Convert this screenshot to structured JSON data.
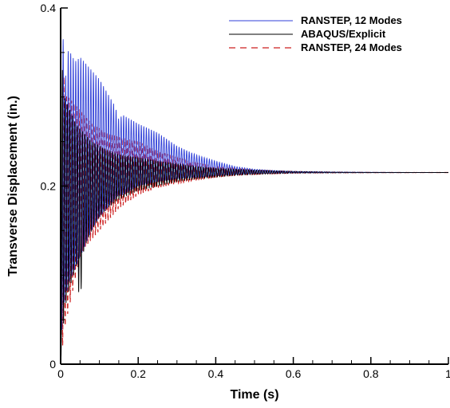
{
  "chart_data": {
    "type": "line",
    "title": "",
    "xlabel": "Time (s)",
    "ylabel": "Transverse Displacement (in.)",
    "xlim": [
      0,
      1
    ],
    "ylim": [
      0,
      0.4
    ],
    "x_ticks": [
      "0",
      "0.2",
      "0.4",
      "0.6",
      "0.8",
      "1"
    ],
    "y_ticks": [
      "0",
      "0.2",
      "0.4"
    ],
    "grid": false,
    "legend_position": "top-right",
    "series": [
      {
        "name": "RANSTEP, 12 Modes",
        "color": "#2f3fd8",
        "dash": "solid",
        "x": [
          0,
          0.005,
          0.01,
          0.015,
          0.02,
          0.03,
          0.04,
          0.05,
          0.06,
          0.08,
          0.1,
          0.12,
          0.14,
          0.15,
          0.16,
          0.18,
          0.2,
          0.25,
          0.3,
          0.35,
          0.4,
          0.45,
          0.5,
          0.55,
          0.6,
          0.7,
          0.8,
          0.9,
          1.0
        ],
        "upper": [
          0.0,
          0.38,
          0.33,
          0.32,
          0.355,
          0.345,
          0.34,
          0.345,
          0.34,
          0.33,
          0.32,
          0.305,
          0.29,
          0.275,
          0.28,
          0.275,
          0.27,
          0.26,
          0.245,
          0.235,
          0.228,
          0.222,
          0.219,
          0.2175,
          0.2165,
          0.2158,
          0.2155,
          0.2153,
          0.2152
        ],
        "lower": [
          0.0,
          0.06,
          0.07,
          0.08,
          0.09,
          0.1,
          0.11,
          0.12,
          0.13,
          0.15,
          0.165,
          0.175,
          0.185,
          0.19,
          0.19,
          0.195,
          0.2,
          0.205,
          0.208,
          0.21,
          0.212,
          0.213,
          0.214,
          0.2145,
          0.2148,
          0.215,
          0.2151,
          0.2151,
          0.2152
        ]
      },
      {
        "name": "ABAQUS/Explicit",
        "color": "#000000",
        "dash": "solid",
        "x": [
          0,
          0.005,
          0.01,
          0.02,
          0.03,
          0.04,
          0.05,
          0.06,
          0.08,
          0.1,
          0.12,
          0.15,
          0.2,
          0.25,
          0.3,
          0.35,
          0.4,
          0.45,
          0.5,
          0.6,
          0.7,
          0.8,
          0.9,
          1.0
        ],
        "upper": [
          0.0,
          0.37,
          0.3,
          0.29,
          0.28,
          0.27,
          0.265,
          0.26,
          0.25,
          0.245,
          0.24,
          0.235,
          0.232,
          0.228,
          0.225,
          0.222,
          0.22,
          0.219,
          0.218,
          0.2165,
          0.2158,
          0.2154,
          0.2153,
          0.2152
        ],
        "lower": [
          0.0,
          0.03,
          0.06,
          0.08,
          0.095,
          0.11,
          0.065,
          0.13,
          0.15,
          0.165,
          0.175,
          0.185,
          0.195,
          0.2,
          0.205,
          0.208,
          0.21,
          0.212,
          0.213,
          0.2145,
          0.2148,
          0.215,
          0.2151,
          0.2152
        ]
      },
      {
        "name": "RANSTEP, 24 Modes",
        "color": "#cc1f1f",
        "dash": "dashed",
        "x": [
          0,
          0.005,
          0.01,
          0.02,
          0.03,
          0.04,
          0.05,
          0.06,
          0.08,
          0.1,
          0.12,
          0.15,
          0.2,
          0.25,
          0.3,
          0.35,
          0.4,
          0.45,
          0.5,
          0.6,
          0.7,
          0.8,
          0.9,
          1.0
        ],
        "upper": [
          0.0,
          0.36,
          0.305,
          0.3,
          0.295,
          0.29,
          0.285,
          0.28,
          0.27,
          0.265,
          0.26,
          0.255,
          0.25,
          0.24,
          0.232,
          0.226,
          0.222,
          0.22,
          0.218,
          0.2165,
          0.2158,
          0.2154,
          0.2153,
          0.2152
        ],
        "lower": [
          0.0,
          0.02,
          0.04,
          0.06,
          0.08,
          0.1,
          0.12,
          0.13,
          0.14,
          0.15,
          0.16,
          0.175,
          0.19,
          0.198,
          0.203,
          0.207,
          0.21,
          0.212,
          0.213,
          0.2145,
          0.2148,
          0.215,
          0.2151,
          0.2152
        ]
      }
    ],
    "steady_state_value": 0.2152,
    "oscillation_period_s": 0.0065
  }
}
